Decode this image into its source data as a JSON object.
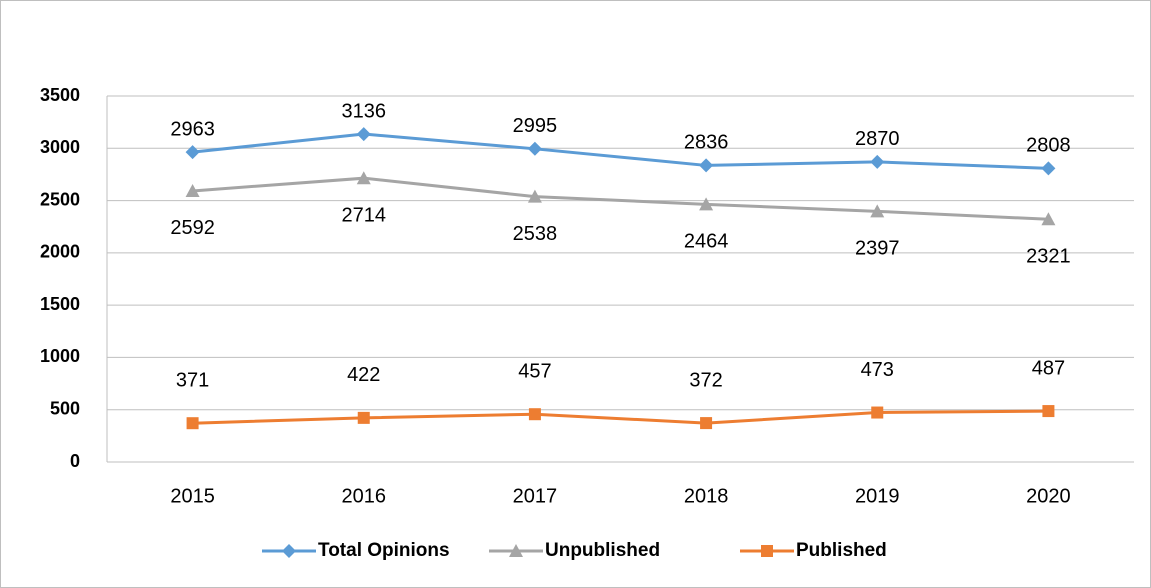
{
  "chart_data": {
    "type": "line",
    "categories": [
      "2015",
      "2016",
      "2017",
      "2018",
      "2019",
      "2020"
    ],
    "series": [
      {
        "name": "Total Opinions",
        "color": "#5b9bd5",
        "marker": "diamond",
        "values": [
          2963,
          3136,
          2995,
          2836,
          2870,
          2808
        ]
      },
      {
        "name": "Unpublished",
        "color": "#a5a5a5",
        "marker": "triangle",
        "values": [
          2592,
          2714,
          2538,
          2464,
          2397,
          2321
        ]
      },
      {
        "name": "Published",
        "color": "#ed7d31",
        "marker": "square",
        "values": [
          371,
          422,
          457,
          372,
          473,
          487
        ]
      }
    ],
    "ylim": [
      0,
      3500
    ],
    "yticks": [
      0,
      500,
      1000,
      1500,
      2000,
      2500,
      3000,
      3500
    ],
    "grid": true,
    "legend": "bottom"
  }
}
